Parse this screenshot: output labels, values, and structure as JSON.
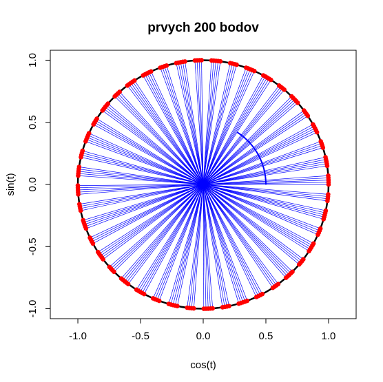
{
  "chart_data": {
    "type": "scatter",
    "title": "prvych 200 bodov",
    "xlabel": "cos(t)",
    "ylabel": "sin(t)",
    "xlim": [
      -1.22,
      1.22
    ],
    "ylim": [
      -1.08,
      1.08
    ],
    "x_ticks": [
      "-1.0",
      "-0.5",
      "0.0",
      "0.5",
      "1.0"
    ],
    "y_ticks": [
      "-1.0",
      "-0.5",
      "0.0",
      "0.5",
      "1.0"
    ],
    "x_tick_values": [
      -1,
      -0.5,
      0,
      0.5,
      1
    ],
    "y_tick_values": [
      -1,
      -0.5,
      0,
      0.5,
      1
    ],
    "n_points": 200,
    "angle_step_rad": 1,
    "unit_circle": {
      "radius": 1,
      "color": "#000000"
    },
    "inner_arc": {
      "radius": 0.5,
      "from_rad": 0,
      "to_rad": 1,
      "color": "#0000ff"
    },
    "point_color": "#ff0000",
    "ray_color": "#0000ff",
    "grid": false,
    "legend": "none"
  }
}
